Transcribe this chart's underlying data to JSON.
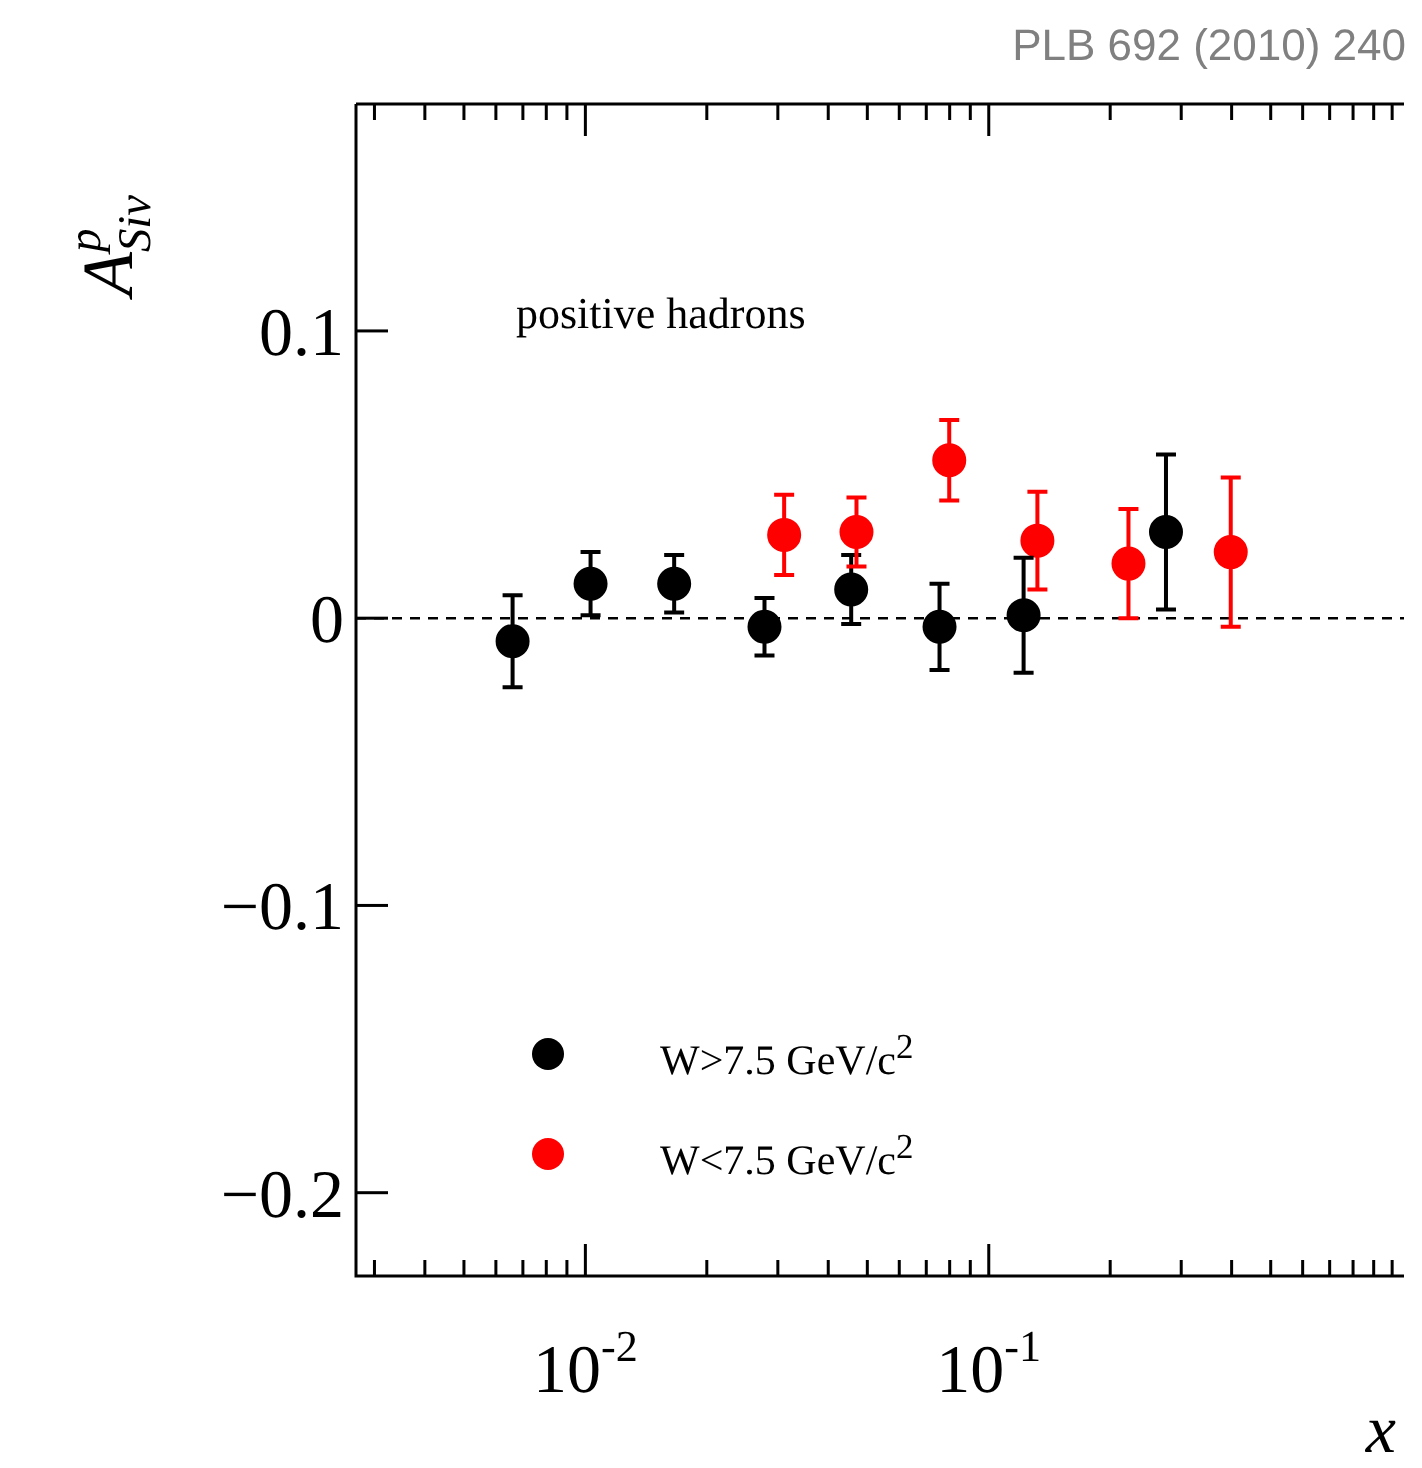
{
  "chart_data": {
    "type": "scatter",
    "ylabel": "A$^{p}$$_{Siv}$",
    "xlabel": "x",
    "annotations": [
      "PLB 692 (2010) 240",
      "positive hadrons"
    ],
    "series": [
      {
        "name": "W>7.5 GeV/c$^{2}$",
        "color": "#000000",
        "x": [
          0.0066,
          0.0103,
          0.0166,
          0.0278,
          0.0456,
          0.0755,
          0.122,
          0.275
        ],
        "values": [
          -0.008,
          0.012,
          0.012,
          -0.003,
          0.01,
          -0.003,
          0.001,
          0.03
        ],
        "errors": [
          0.016,
          0.011,
          0.01,
          0.01,
          0.012,
          0.015,
          0.02,
          0.027
        ]
      },
      {
        "name": "W<7.5 GeV/c$^{2}$",
        "color": "#ff0000",
        "x": [
          0.0311,
          0.047,
          0.0798,
          0.132,
          0.222,
          0.398
        ],
        "values": [
          0.029,
          0.03,
          0.055,
          0.027,
          0.019,
          0.023
        ],
        "errors": [
          0.014,
          0.012,
          0.014,
          0.017,
          0.019,
          0.026
        ]
      }
    ],
    "log": "x",
    "xlim": [
      0.0027,
      1.07
    ],
    "ylim": [
      -0.229,
      0.179
    ],
    "xticks": [
      {
        "value": 0.003,
        "label": null
      },
      {
        "value": 0.004,
        "label": null
      },
      {
        "value": 0.005,
        "label": null
      },
      {
        "value": 0.006,
        "label": null
      },
      {
        "value": 0.007,
        "label": null
      },
      {
        "value": 0.008,
        "label": null
      },
      {
        "value": 0.009,
        "label": null
      },
      {
        "value": 0.01,
        "label": "10$^{-2}$"
      },
      {
        "value": 0.02,
        "label": null
      },
      {
        "value": 0.03,
        "label": null
      },
      {
        "value": 0.04,
        "label": null
      },
      {
        "value": 0.05,
        "label": null
      },
      {
        "value": 0.06,
        "label": null
      },
      {
        "value": 0.07,
        "label": null
      },
      {
        "value": 0.08,
        "label": null
      },
      {
        "value": 0.09,
        "label": null
      },
      {
        "value": 0.1,
        "label": "10$^{-1}$"
      },
      {
        "value": 0.2,
        "label": null
      },
      {
        "value": 0.3,
        "label": null
      },
      {
        "value": 0.4,
        "label": null
      },
      {
        "value": 0.5,
        "label": null
      },
      {
        "value": 0.6,
        "label": null
      },
      {
        "value": 0.7,
        "label": null
      },
      {
        "value": 0.8,
        "label": null
      },
      {
        "value": 0.9,
        "label": null
      },
      {
        "value": 1,
        "label": null
      }
    ],
    "yticks": [
      {
        "value": -0.2,
        "label": "−0.2"
      },
      {
        "value": -0.1,
        "label": "−0.1"
      },
      0,
      0.1
    ],
    "ref_lines": [
      {
        "axis": "y",
        "value": 0,
        "label": null,
        "line_style": "dashed",
        "color": "#000000"
      }
    ],
    "grid": false,
    "legend": "bottom left",
    "marker": "circle"
  }
}
